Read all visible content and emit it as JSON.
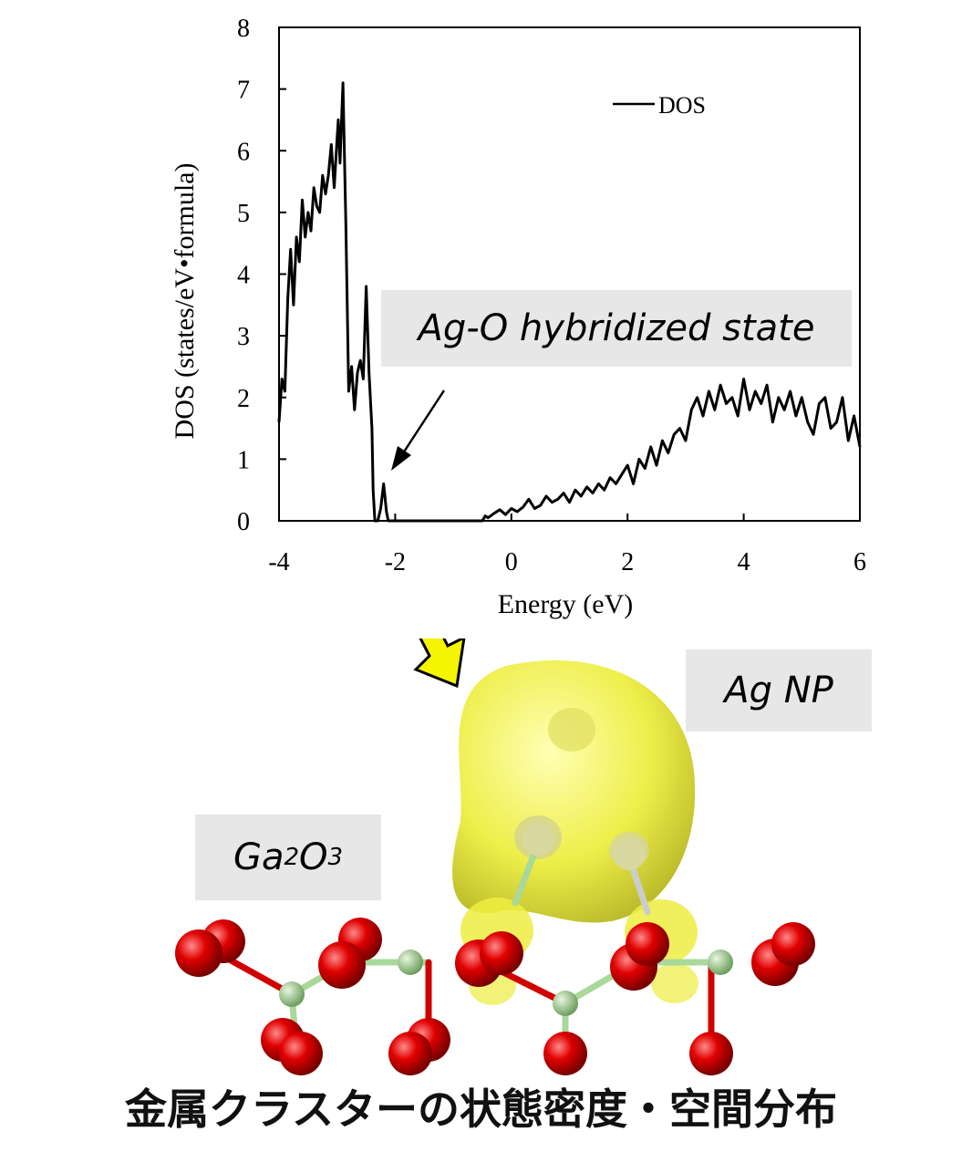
{
  "chart_data": {
    "type": "line",
    "xlabel": "Energy (eV)",
    "ylabel": "DOS (states/eV•formula)",
    "xlim": [
      -4,
      6
    ],
    "ylim": [
      0,
      8
    ],
    "xticks": [
      -4,
      -2,
      0,
      2,
      4,
      6
    ],
    "yticks": [
      0,
      1,
      2,
      3,
      4,
      5,
      6,
      7,
      8
    ],
    "legend": "top-right",
    "grid": false,
    "series": [
      {
        "name": "DOS",
        "color": "#000000",
        "x": [
          -4.0,
          -3.95,
          -3.9,
          -3.85,
          -3.8,
          -3.75,
          -3.7,
          -3.65,
          -3.6,
          -3.55,
          -3.5,
          -3.45,
          -3.4,
          -3.35,
          -3.3,
          -3.25,
          -3.2,
          -3.15,
          -3.1,
          -3.05,
          -3.0,
          -2.98,
          -2.95,
          -2.9,
          -2.85,
          -2.8,
          -2.75,
          -2.7,
          -2.65,
          -2.6,
          -2.55,
          -2.5,
          -2.45,
          -2.4,
          -2.38,
          -2.35,
          -2.3,
          -2.25,
          -2.2,
          -2.15,
          -2.12,
          -2.1,
          -2.08,
          -2.05,
          -2.0,
          -1.98,
          -1.95,
          -1.9,
          -0.5,
          -0.45,
          -0.4,
          -0.3,
          -0.2,
          -0.1,
          0.0,
          0.1,
          0.2,
          0.3,
          0.4,
          0.5,
          0.6,
          0.7,
          0.8,
          0.9,
          1.0,
          1.1,
          1.2,
          1.3,
          1.4,
          1.5,
          1.6,
          1.7,
          1.8,
          1.9,
          2.0,
          2.1,
          2.2,
          2.3,
          2.4,
          2.5,
          2.6,
          2.7,
          2.8,
          2.9,
          3.0,
          3.1,
          3.2,
          3.3,
          3.4,
          3.5,
          3.6,
          3.7,
          3.8,
          3.9,
          4.0,
          4.1,
          4.2,
          4.3,
          4.4,
          4.5,
          4.6,
          4.7,
          4.8,
          4.9,
          5.0,
          5.1,
          5.2,
          5.3,
          5.4,
          5.5,
          5.6,
          5.7,
          5.8,
          5.9,
          6.0
        ],
        "y": [
          1.6,
          2.3,
          2.1,
          3.6,
          4.4,
          3.5,
          4.6,
          4.2,
          5.2,
          4.6,
          5.0,
          4.7,
          5.4,
          5.1,
          5.0,
          5.6,
          5.3,
          5.6,
          6.1,
          5.4,
          6.2,
          6.5,
          5.8,
          7.1,
          4.8,
          2.1,
          2.5,
          1.8,
          2.4,
          2.6,
          2.3,
          3.8,
          2.4,
          1.5,
          0.5,
          0.0,
          0.0,
          0.2,
          0.6,
          0.15,
          0.0,
          0.0,
          0.0,
          0.0,
          0.0,
          0.0,
          0.0,
          0.0,
          0.0,
          0.08,
          0.05,
          0.12,
          0.18,
          0.1,
          0.2,
          0.15,
          0.22,
          0.35,
          0.2,
          0.25,
          0.4,
          0.3,
          0.35,
          0.45,
          0.3,
          0.5,
          0.4,
          0.55,
          0.45,
          0.6,
          0.5,
          0.7,
          0.6,
          0.75,
          0.9,
          0.6,
          1.0,
          0.85,
          1.2,
          0.9,
          1.3,
          1.1,
          1.4,
          1.5,
          1.3,
          1.8,
          2.0,
          1.7,
          2.1,
          1.8,
          2.2,
          1.9,
          2.0,
          1.7,
          2.3,
          1.8,
          2.1,
          1.9,
          2.2,
          1.6,
          2.0,
          1.8,
          2.1,
          1.7,
          2.0,
          1.6,
          1.4,
          1.9,
          2.0,
          1.5,
          1.6,
          2.0,
          1.3,
          1.7,
          1.2
        ]
      }
    ]
  },
  "legend_label": "DOS",
  "callouts": {
    "hybridized": "Ag-O hybridized state",
    "ag_np": "Ag NP",
    "support_main": "Ga",
    "support_sub1": "2",
    "support_mid": "O",
    "support_sub2": "3"
  },
  "caption": "金属クラスターの状態密度・空間分布",
  "colors": {
    "line": "#000000",
    "yellow_arrow": "#f5f500",
    "orbital": "#ecec4a",
    "oxygen": "#d00000",
    "gallium": "#9fcf8f",
    "callout_bg": "#e7e7e7"
  },
  "icons": [
    "yellow-arrow-icon",
    "black-arrow-icon"
  ]
}
